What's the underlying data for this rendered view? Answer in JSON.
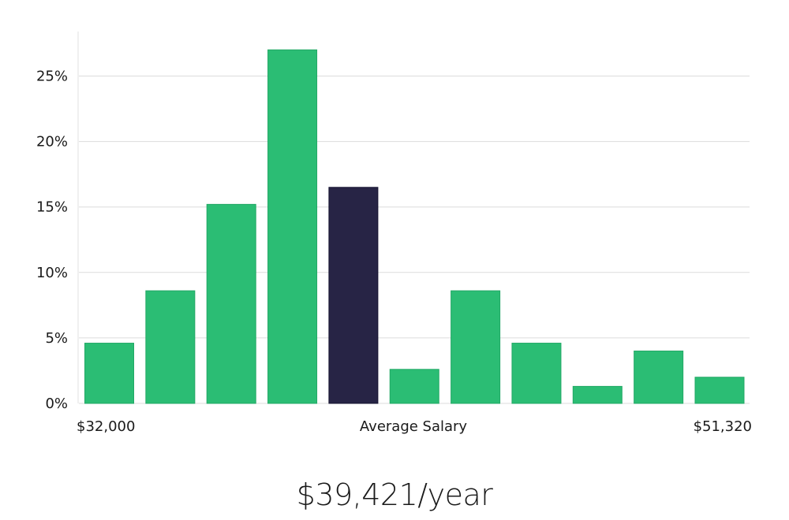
{
  "chart_data": {
    "type": "bar",
    "x_axis_labels": {
      "left": "$32,000",
      "center": "Average Salary",
      "right": "$51,320"
    },
    "values": [
      4.6,
      8.6,
      15.2,
      27.0,
      16.5,
      2.6,
      8.6,
      4.6,
      1.3,
      4.0,
      2.0
    ],
    "highlight_index": 4,
    "ylim": [
      0,
      28.4
    ],
    "yticks": [
      0,
      5,
      10,
      15,
      20,
      25
    ],
    "ytick_labels": [
      "0%",
      "5%",
      "10%",
      "15%",
      "20%",
      "25%"
    ],
    "grid": true,
    "colors": {
      "bar": "#2bbd74",
      "bar_stroke": "#22a865",
      "highlight": "#272445",
      "highlight_stroke": "#151330",
      "grid": "#dcdcdc",
      "axis": "#e0e0e0"
    }
  },
  "summary": {
    "average_salary": "$39,421/year"
  }
}
